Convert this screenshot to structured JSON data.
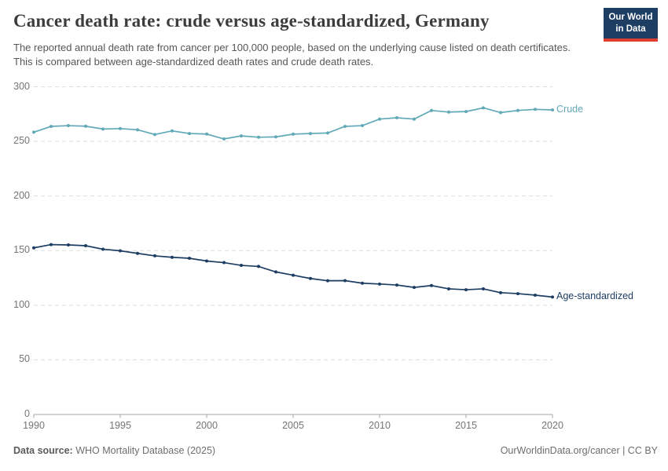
{
  "header": {
    "title": "Cancer death rate: crude versus age-standardized, Germany",
    "subtitle": "The reported annual death rate from cancer per 100,000 people, based on the underlying cause listed on death certificates. This is compared between age-standardized death rates and crude death rates.",
    "logo": {
      "line1": "Our World",
      "line2": "in Data",
      "bg_color": "#1d3d63",
      "bar_color": "#dc3e32"
    }
  },
  "chart_data": {
    "type": "line",
    "title": "Cancer death rate: crude versus age-standardized, Germany",
    "x": [
      1990,
      1991,
      1992,
      1993,
      1994,
      1995,
      1996,
      1997,
      1998,
      1999,
      2000,
      2001,
      2002,
      2003,
      2004,
      2005,
      2006,
      2007,
      2008,
      2009,
      2010,
      2011,
      2012,
      2013,
      2014,
      2015,
      2016,
      2017,
      2018,
      2019,
      2020
    ],
    "series": [
      {
        "name": "Crude",
        "color": "#62a9b8",
        "values": [
          258.4,
          263.7,
          264.4,
          263.9,
          261.3,
          261.7,
          260.6,
          256.3,
          259.6,
          257.2,
          256.7,
          252.2,
          255.0,
          253.8,
          254.1,
          256.6,
          257.2,
          257.7,
          263.7,
          264.4,
          270.4,
          271.6,
          270.4,
          278.3,
          276.8,
          277.3,
          280.7,
          276.4,
          278.3,
          279.3,
          278.8
        ]
      },
      {
        "name": "Age-standardized",
        "color": "#1d3d63",
        "values": [
          152.5,
          155.5,
          155.2,
          154.5,
          151.3,
          149.8,
          147.5,
          145.2,
          143.9,
          143.0,
          140.5,
          139.0,
          136.5,
          135.5,
          130.5,
          127.5,
          124.5,
          122.4,
          122.5,
          120.2,
          119.4,
          118.5,
          116.3,
          118.0,
          115.0,
          114.2,
          115.0,
          111.5,
          110.6,
          109.2,
          107.5
        ]
      }
    ],
    "xticks": [
      1990,
      1995,
      2000,
      2005,
      2010,
      2015,
      2020
    ],
    "yticks": [
      0,
      50,
      100,
      150,
      200,
      250,
      300
    ],
    "xlim": [
      1990,
      2020
    ],
    "ylim": [
      0,
      300
    ],
    "grid": "horizontal-dashed",
    "legend_position": "right-edge-labels",
    "unit": "deaths per 100,000 people"
  },
  "footer": {
    "source_label": "Data source:",
    "source_text": "WHO Mortality Database (2025)",
    "credit": "OurWorldinData.org/cancer | CC BY"
  }
}
